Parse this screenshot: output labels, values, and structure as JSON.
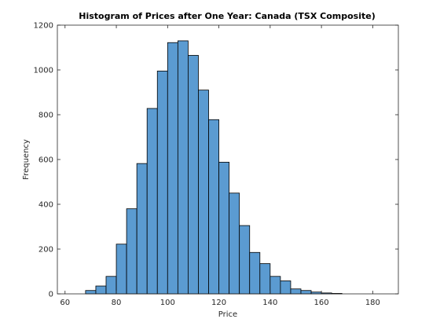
{
  "chart_data": {
    "type": "bar",
    "title": "Histogram of Prices after One Year: Canada (TSX Composite)",
    "xlabel": "Price",
    "ylabel": "Frequency",
    "xlim": [
      57,
      190
    ],
    "ylim": [
      0,
      1200
    ],
    "xticks": [
      60,
      80,
      100,
      120,
      140,
      160,
      180
    ],
    "yticks": [
      0,
      200,
      400,
      600,
      800,
      1000,
      1200
    ],
    "bin_width": 4,
    "bins": [
      {
        "start": 68,
        "value": 15
      },
      {
        "start": 72,
        "value": 35
      },
      {
        "start": 76,
        "value": 78
      },
      {
        "start": 80,
        "value": 222
      },
      {
        "start": 84,
        "value": 380
      },
      {
        "start": 88,
        "value": 582
      },
      {
        "start": 92,
        "value": 828
      },
      {
        "start": 96,
        "value": 995
      },
      {
        "start": 100,
        "value": 1122
      },
      {
        "start": 104,
        "value": 1130
      },
      {
        "start": 108,
        "value": 1065
      },
      {
        "start": 112,
        "value": 910
      },
      {
        "start": 116,
        "value": 778
      },
      {
        "start": 120,
        "value": 588
      },
      {
        "start": 124,
        "value": 450
      },
      {
        "start": 128,
        "value": 305
      },
      {
        "start": 132,
        "value": 185
      },
      {
        "start": 136,
        "value": 135
      },
      {
        "start": 140,
        "value": 78
      },
      {
        "start": 144,
        "value": 58
      },
      {
        "start": 148,
        "value": 22
      },
      {
        "start": 152,
        "value": 15
      },
      {
        "start": 156,
        "value": 8
      },
      {
        "start": 160,
        "value": 4
      },
      {
        "start": 164,
        "value": 2
      }
    ],
    "grid": false,
    "bar_color": "#5b9bd1",
    "edge_color": "#000000"
  }
}
